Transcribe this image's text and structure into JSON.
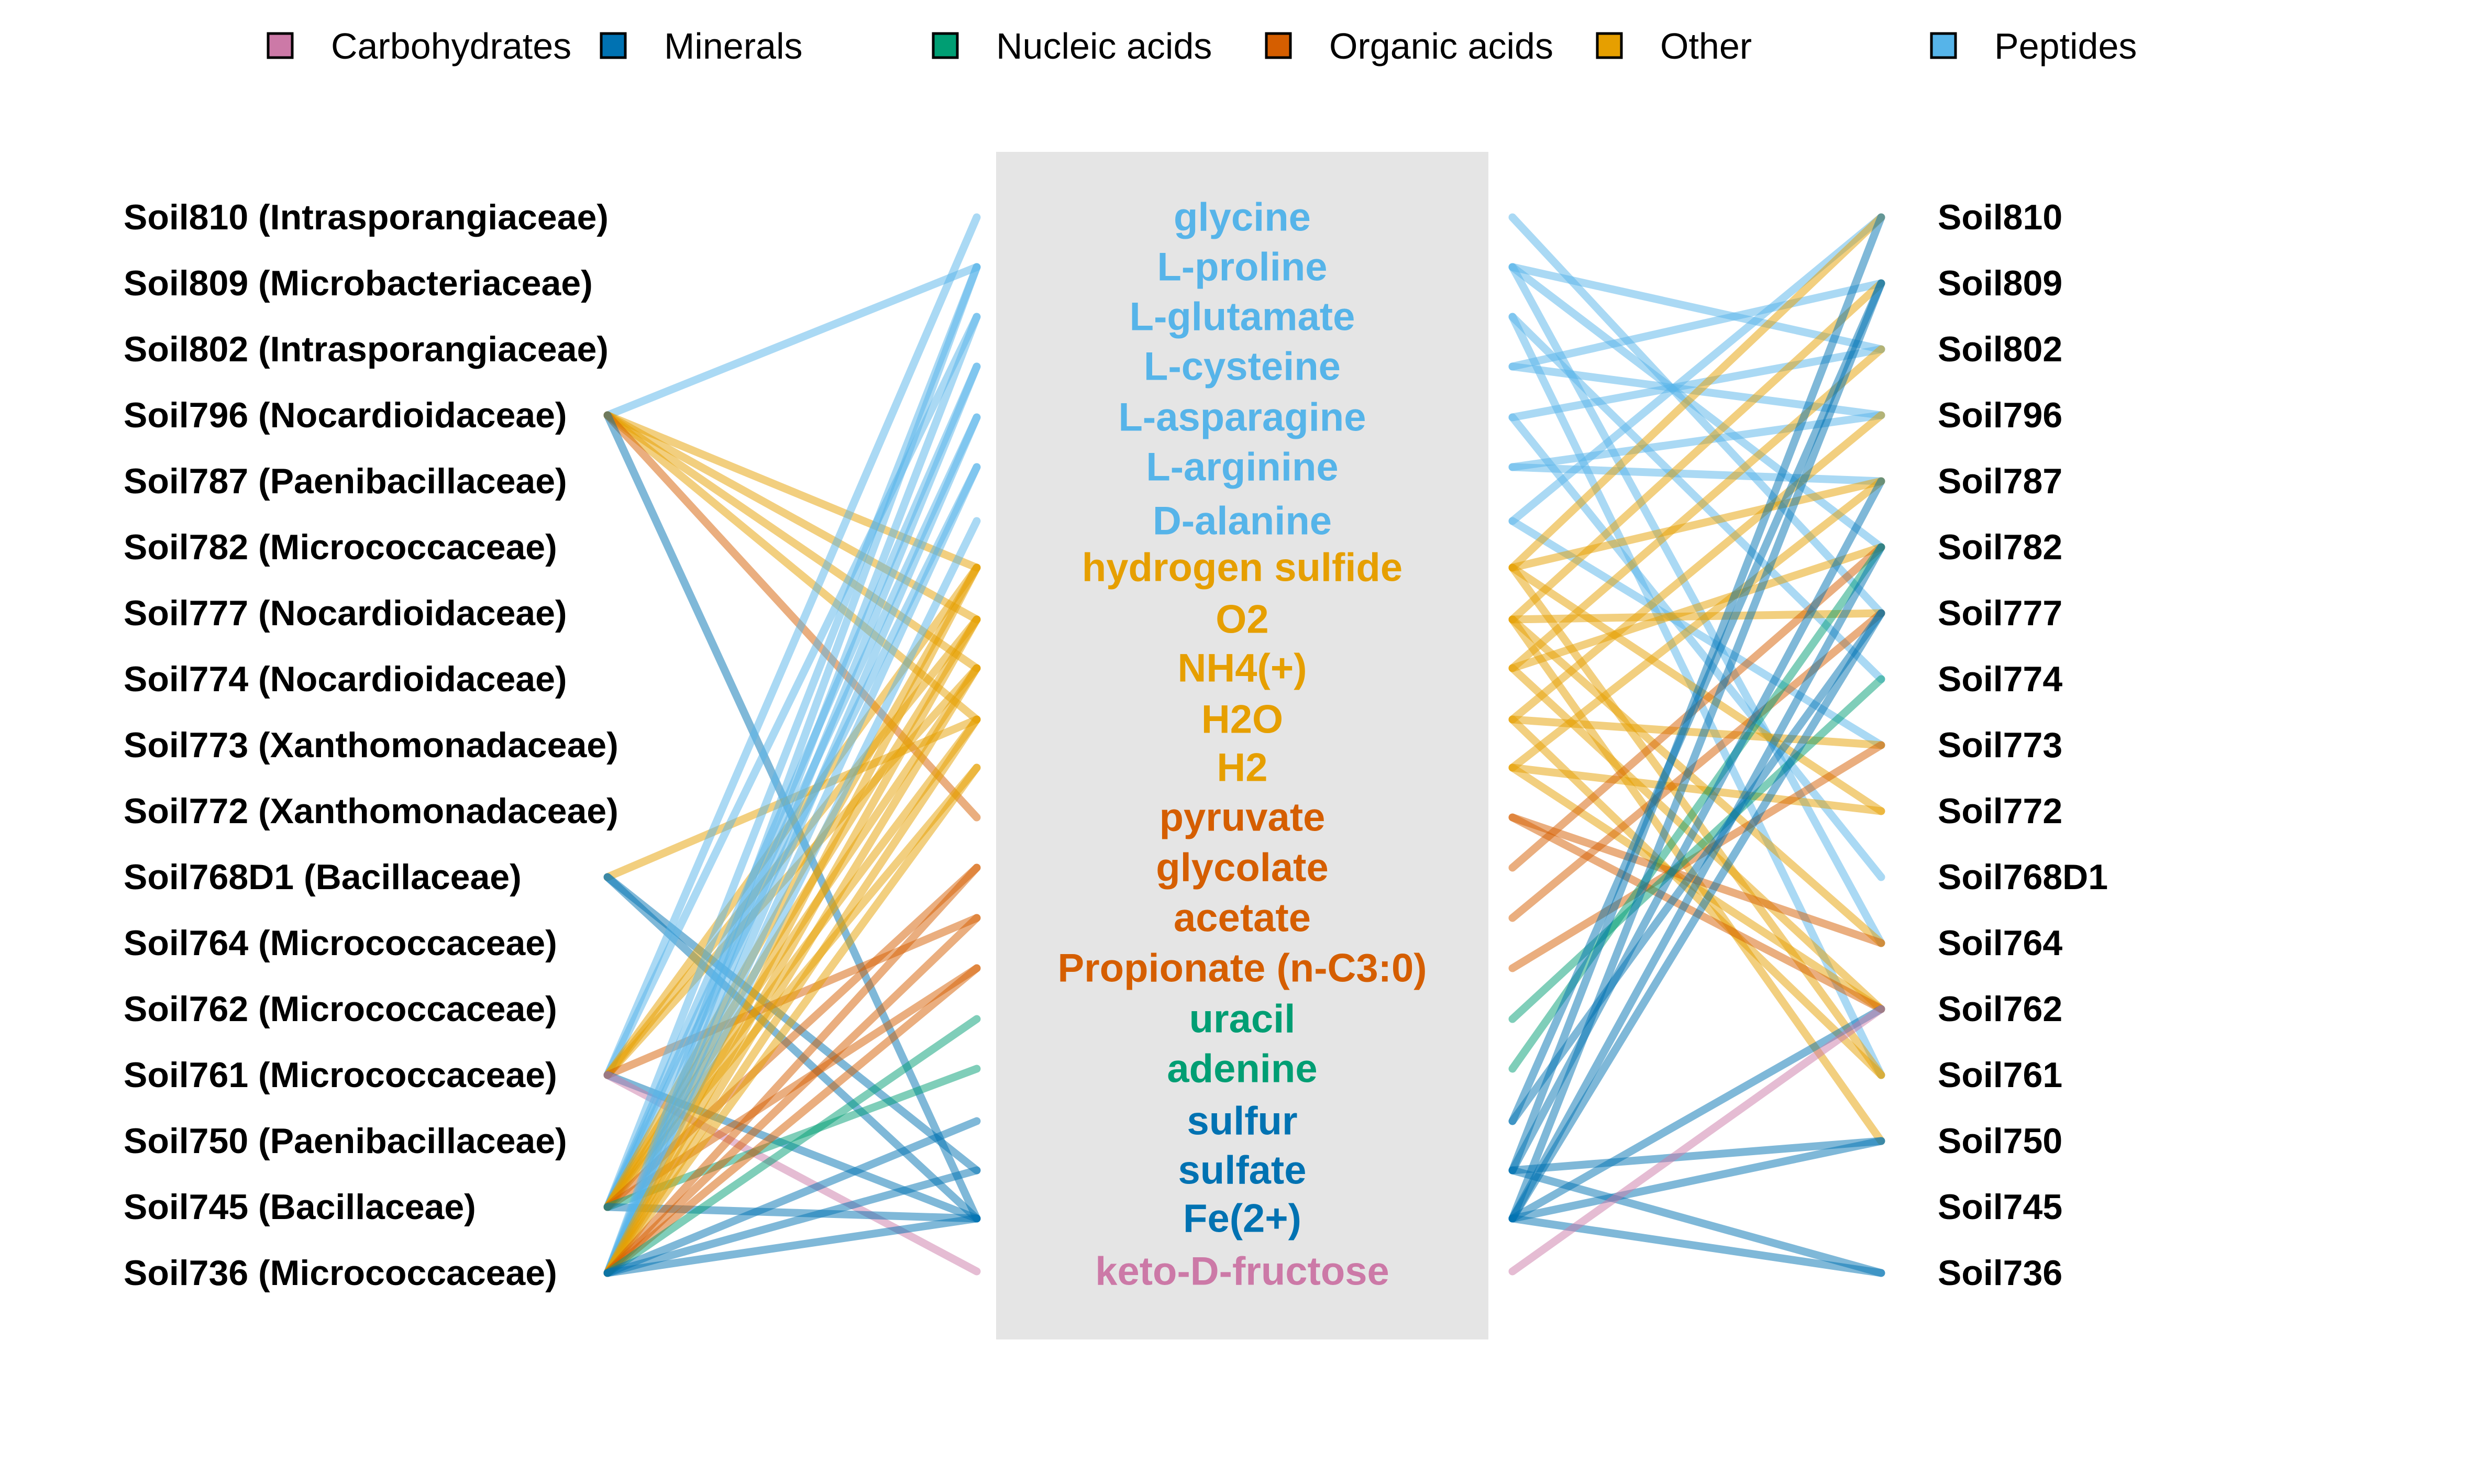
{
  "colors": {
    "Carbohydrates": "#CC79A7",
    "Minerals": "#0072B2",
    "Nucleic acids": "#009E73",
    "Organic acids": "#D55E00",
    "Other": "#E69F00",
    "Peptides": "#56B4E9",
    "panel": "#e5e5e5"
  },
  "legend": [
    {
      "label": "Carbohydrates",
      "category": "Carbohydrates"
    },
    {
      "label": "Minerals",
      "category": "Minerals"
    },
    {
      "label": "Nucleic acids",
      "category": "Nucleic acids"
    },
    {
      "label": "Organic acids",
      "category": "Organic acids"
    },
    {
      "label": "Other",
      "category": "Other"
    },
    {
      "label": "Peptides",
      "category": "Peptides"
    }
  ],
  "left_labels": [
    "Soil810 (Intrasporangiaceae)",
    "Soil809 (Microbacteriaceae)",
    "Soil802 (Intrasporangiaceae)",
    "Soil796 (Nocardioidaceae)",
    "Soil787 (Paenibacillaceae)",
    "Soil782 (Micrococcaceae)",
    "Soil777 (Nocardioidaceae)",
    "Soil774 (Nocardioidaceae)",
    "Soil773 (Xanthomonadaceae)",
    "Soil772 (Xanthomonadaceae)",
    "Soil768D1 (Bacillaceae)",
    "Soil764 (Micrococcaceae)",
    "Soil762 (Micrococcaceae)",
    "Soil761 (Micrococcaceae)",
    "Soil750 (Paenibacillaceae)",
    "Soil745 (Bacillaceae)",
    "Soil736 (Micrococcaceae)"
  ],
  "right_labels": [
    "Soil810",
    "Soil809",
    "Soil802",
    "Soil796",
    "Soil787",
    "Soil782",
    "Soil777",
    "Soil774",
    "Soil773",
    "Soil772",
    "Soil768D1",
    "Soil764",
    "Soil762",
    "Soil761",
    "Soil750",
    "Soil745",
    "Soil736"
  ],
  "metabolites": [
    {
      "name": "glycine",
      "category": "Peptides"
    },
    {
      "name": "L-proline",
      "category": "Peptides"
    },
    {
      "name": "L-glutamate",
      "category": "Peptides"
    },
    {
      "name": "L-cysteine",
      "category": "Peptides"
    },
    {
      "name": "L-asparagine",
      "category": "Peptides"
    },
    {
      "name": "L-arginine",
      "category": "Peptides"
    },
    {
      "name": "D-alanine",
      "category": "Peptides"
    },
    {
      "name": "hydrogen sulfide",
      "category": "Other"
    },
    {
      "name": "O2",
      "category": "Other"
    },
    {
      "name": "NH4(+)",
      "category": "Other"
    },
    {
      "name": "H2O",
      "category": "Other"
    },
    {
      "name": "H2",
      "category": "Other"
    },
    {
      "name": "pyruvate",
      "category": "Organic acids"
    },
    {
      "name": "glycolate",
      "category": "Organic acids"
    },
    {
      "name": "acetate",
      "category": "Organic acids"
    },
    {
      "name": "Propionate (n-C3:0)",
      "category": "Organic acids"
    },
    {
      "name": "uracil",
      "category": "Nucleic acids"
    },
    {
      "name": "adenine",
      "category": "Nucleic acids"
    },
    {
      "name": "sulfur",
      "category": "Minerals"
    },
    {
      "name": "sulfate",
      "category": "Minerals"
    },
    {
      "name": "Fe(2+)",
      "category": "Minerals"
    },
    {
      "name": "keto-D-fructose",
      "category": "Carbohydrates"
    }
  ],
  "left_links": [
    [
      "Soil796 (Nocardioidaceae)",
      "L-proline"
    ],
    [
      "Soil796 (Nocardioidaceae)",
      "hydrogen sulfide"
    ],
    [
      "Soil796 (Nocardioidaceae)",
      "O2"
    ],
    [
      "Soil796 (Nocardioidaceae)",
      "NH4(+)"
    ],
    [
      "Soil796 (Nocardioidaceae)",
      "H2O"
    ],
    [
      "Soil796 (Nocardioidaceae)",
      "pyruvate"
    ],
    [
      "Soil796 (Nocardioidaceae)",
      "Fe(2+)"
    ],
    [
      "Soil768D1 (Bacillaceae)",
      "H2O"
    ],
    [
      "Soil768D1 (Bacillaceae)",
      "sulfate"
    ],
    [
      "Soil768D1 (Bacillaceae)",
      "Fe(2+)"
    ],
    [
      "Soil761 (Micrococcaceae)",
      "glycine"
    ],
    [
      "Soil761 (Micrococcaceae)",
      "L-glutamate"
    ],
    [
      "Soil761 (Micrococcaceae)",
      "hydrogen sulfide"
    ],
    [
      "Soil761 (Micrococcaceae)",
      "O2"
    ],
    [
      "Soil761 (Micrococcaceae)",
      "NH4(+)"
    ],
    [
      "Soil761 (Micrococcaceae)",
      "acetate"
    ],
    [
      "Soil761 (Micrococcaceae)",
      "Fe(2+)"
    ],
    [
      "Soil761 (Micrococcaceae)",
      "keto-D-fructose"
    ],
    [
      "Soil745 (Bacillaceae)",
      "L-proline"
    ],
    [
      "Soil745 (Bacillaceae)",
      "L-cysteine"
    ],
    [
      "Soil745 (Bacillaceae)",
      "L-asparagine"
    ],
    [
      "Soil745 (Bacillaceae)",
      "L-arginine"
    ],
    [
      "Soil745 (Bacillaceae)",
      "hydrogen sulfide"
    ],
    [
      "Soil745 (Bacillaceae)",
      "O2"
    ],
    [
      "Soil745 (Bacillaceae)",
      "NH4(+)"
    ],
    [
      "Soil745 (Bacillaceae)",
      "H2O"
    ],
    [
      "Soil745 (Bacillaceae)",
      "H2"
    ],
    [
      "Soil745 (Bacillaceae)",
      "glycolate"
    ],
    [
      "Soil745 (Bacillaceae)",
      "Propionate (n-C3:0)"
    ],
    [
      "Soil745 (Bacillaceae)",
      "adenine"
    ],
    [
      "Soil745 (Bacillaceae)",
      "Fe(2+)"
    ],
    [
      "Soil736 (Micrococcaceae)",
      "L-proline"
    ],
    [
      "Soil736 (Micrococcaceae)",
      "L-glutamate"
    ],
    [
      "Soil736 (Micrococcaceae)",
      "L-cysteine"
    ],
    [
      "Soil736 (Micrococcaceae)",
      "L-asparagine"
    ],
    [
      "Soil736 (Micrococcaceae)",
      "L-arginine"
    ],
    [
      "Soil736 (Micrococcaceae)",
      "D-alanine"
    ],
    [
      "Soil736 (Micrococcaceae)",
      "hydrogen sulfide"
    ],
    [
      "Soil736 (Micrococcaceae)",
      "O2"
    ],
    [
      "Soil736 (Micrococcaceae)",
      "NH4(+)"
    ],
    [
      "Soil736 (Micrococcaceae)",
      "H2O"
    ],
    [
      "Soil736 (Micrococcaceae)",
      "H2"
    ],
    [
      "Soil736 (Micrococcaceae)",
      "glycolate"
    ],
    [
      "Soil736 (Micrococcaceae)",
      "acetate"
    ],
    [
      "Soil736 (Micrococcaceae)",
      "Propionate (n-C3:0)"
    ],
    [
      "Soil736 (Micrococcaceae)",
      "uracil"
    ],
    [
      "Soil736 (Micrococcaceae)",
      "sulfur"
    ],
    [
      "Soil736 (Micrococcaceae)",
      "sulfate"
    ],
    [
      "Soil736 (Micrococcaceae)",
      "Fe(2+)"
    ]
  ],
  "right_links": [
    [
      "glycine",
      "Soil777"
    ],
    [
      "L-proline",
      "Soil802"
    ],
    [
      "L-proline",
      "Soil782"
    ],
    [
      "L-proline",
      "Soil764"
    ],
    [
      "L-glutamate",
      "Soil774"
    ],
    [
      "L-glutamate",
      "Soil761"
    ],
    [
      "L-cysteine",
      "Soil809"
    ],
    [
      "L-cysteine",
      "Soil796"
    ],
    [
      "L-asparagine",
      "Soil802"
    ],
    [
      "L-asparagine",
      "Soil768D1"
    ],
    [
      "L-arginine",
      "Soil796"
    ],
    [
      "L-arginine",
      "Soil787"
    ],
    [
      "D-alanine",
      "Soil773"
    ],
    [
      "D-alanine",
      "Soil810"
    ],
    [
      "hydrogen sulfide",
      "Soil810"
    ],
    [
      "hydrogen sulfide",
      "Soil787"
    ],
    [
      "hydrogen sulfide",
      "Soil772"
    ],
    [
      "hydrogen sulfide",
      "Soil761"
    ],
    [
      "O2",
      "Soil809"
    ],
    [
      "O2",
      "Soil777"
    ],
    [
      "O2",
      "Soil764"
    ],
    [
      "O2",
      "Soil750"
    ],
    [
      "NH4(+)",
      "Soil802"
    ],
    [
      "NH4(+)",
      "Soil782"
    ],
    [
      "NH4(+)",
      "Soil762"
    ],
    [
      "H2O",
      "Soil796"
    ],
    [
      "H2O",
      "Soil773"
    ],
    [
      "H2O",
      "Soil761"
    ],
    [
      "H2",
      "Soil787"
    ],
    [
      "H2",
      "Soil772"
    ],
    [
      "H2",
      "Soil762"
    ],
    [
      "pyruvate",
      "Soil764"
    ],
    [
      "pyruvate",
      "Soil762"
    ],
    [
      "glycolate",
      "Soil782"
    ],
    [
      "acetate",
      "Soil777"
    ],
    [
      "Propionate (n-C3:0)",
      "Soil773"
    ],
    [
      "uracil",
      "Soil774"
    ],
    [
      "adenine",
      "Soil782"
    ],
    [
      "sulfur",
      "Soil809"
    ],
    [
      "sulfur",
      "Soil777"
    ],
    [
      "sulfate",
      "Soil810"
    ],
    [
      "sulfate",
      "Soil787"
    ],
    [
      "sulfate",
      "Soil750"
    ],
    [
      "sulfate",
      "Soil736"
    ],
    [
      "Fe(2+)",
      "Soil809"
    ],
    [
      "Fe(2+)",
      "Soil782"
    ],
    [
      "Fe(2+)",
      "Soil777"
    ],
    [
      "Fe(2+)",
      "Soil762"
    ],
    [
      "Fe(2+)",
      "Soil750"
    ],
    [
      "Fe(2+)",
      "Soil736"
    ],
    [
      "keto-D-fructose",
      "Soil762"
    ]
  ]
}
